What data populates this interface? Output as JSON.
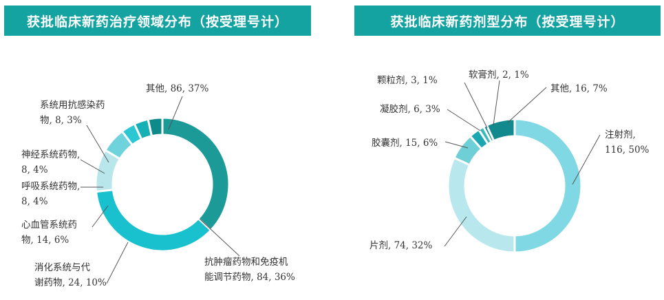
{
  "chart_data": [
    {
      "type": "donut",
      "title": "获批临床新药治疗领域分布（按受理号计）",
      "slices": [
        {
          "name": "其他",
          "value": 86,
          "percent": "37%",
          "color": "#1c9a98",
          "label_lines": [
            "其他, 86, 37%"
          ]
        },
        {
          "name": "抗肿瘤药物和免疫机能调节药物",
          "value": 84,
          "percent": "36%",
          "color": "#19c1cf",
          "label_lines": [
            "抗肿瘤药物和免疫机",
            "能调节药物, 84, 36%"
          ]
        },
        {
          "name": "消化系统与代谢药物",
          "value": 24,
          "percent": "10%",
          "color": "#b9e6ea",
          "label_lines": [
            "消化系统与代",
            "谢药物, 24, 10%"
          ]
        },
        {
          "name": "心血管系统药物",
          "value": 14,
          "percent": "6%",
          "color": "#6fd3db",
          "label_lines": [
            "心血管系统药",
            "物, 14, 6%"
          ]
        },
        {
          "name": "呼吸系统药物",
          "value": 8,
          "percent": "4%",
          "color": "#2bc7d3",
          "label_lines": [
            "呼吸系统药物,",
            "8, 4%"
          ]
        },
        {
          "name": "神经系统药物",
          "value": 8,
          "percent": "4%",
          "color": "#16b0b5",
          "label_lines": [
            "神经系统药物,",
            "8, 4%"
          ]
        },
        {
          "name": "系统用抗感染药物",
          "value": 8,
          "percent": "3%",
          "color": "#0f8a8a",
          "label_lines": [
            "系统用抗感染药",
            "物, 8, 3%"
          ]
        }
      ]
    },
    {
      "type": "donut",
      "title": "获批临床新药剂型分布（按受理号计）",
      "slices": [
        {
          "name": "注射剂",
          "value": 116,
          "percent": "50%",
          "color": "#7fd8e3",
          "label_lines": [
            "注射剂,",
            "116, 50%"
          ]
        },
        {
          "name": "片剂",
          "value": 74,
          "percent": "32%",
          "color": "#b8e8ed",
          "label_lines": [
            "片剂, 74, 32%"
          ]
        },
        {
          "name": "胶囊剂",
          "value": 15,
          "percent": "6%",
          "color": "#6fcfd7",
          "label_lines": [
            "胶囊剂, 15, 6%"
          ]
        },
        {
          "name": "凝胶剂",
          "value": 6,
          "percent": "3%",
          "color": "#1aa7b0",
          "label_lines": [
            "凝胶剂, 6, 3%"
          ]
        },
        {
          "name": "颗粒剂",
          "value": 3,
          "percent": "1%",
          "color": "#3ab9bf",
          "label_lines": [
            "颗粒剂, 3, 1%"
          ]
        },
        {
          "name": "软膏剂",
          "value": 2,
          "percent": "1%",
          "color": "#0d8f95",
          "label_lines": [
            "软膏剂, 2, 1%"
          ]
        },
        {
          "name": "其他",
          "value": 16,
          "percent": "7%",
          "color": "#128a8d",
          "label_lines": [
            "其他, 16, 7%"
          ]
        }
      ]
    }
  ]
}
